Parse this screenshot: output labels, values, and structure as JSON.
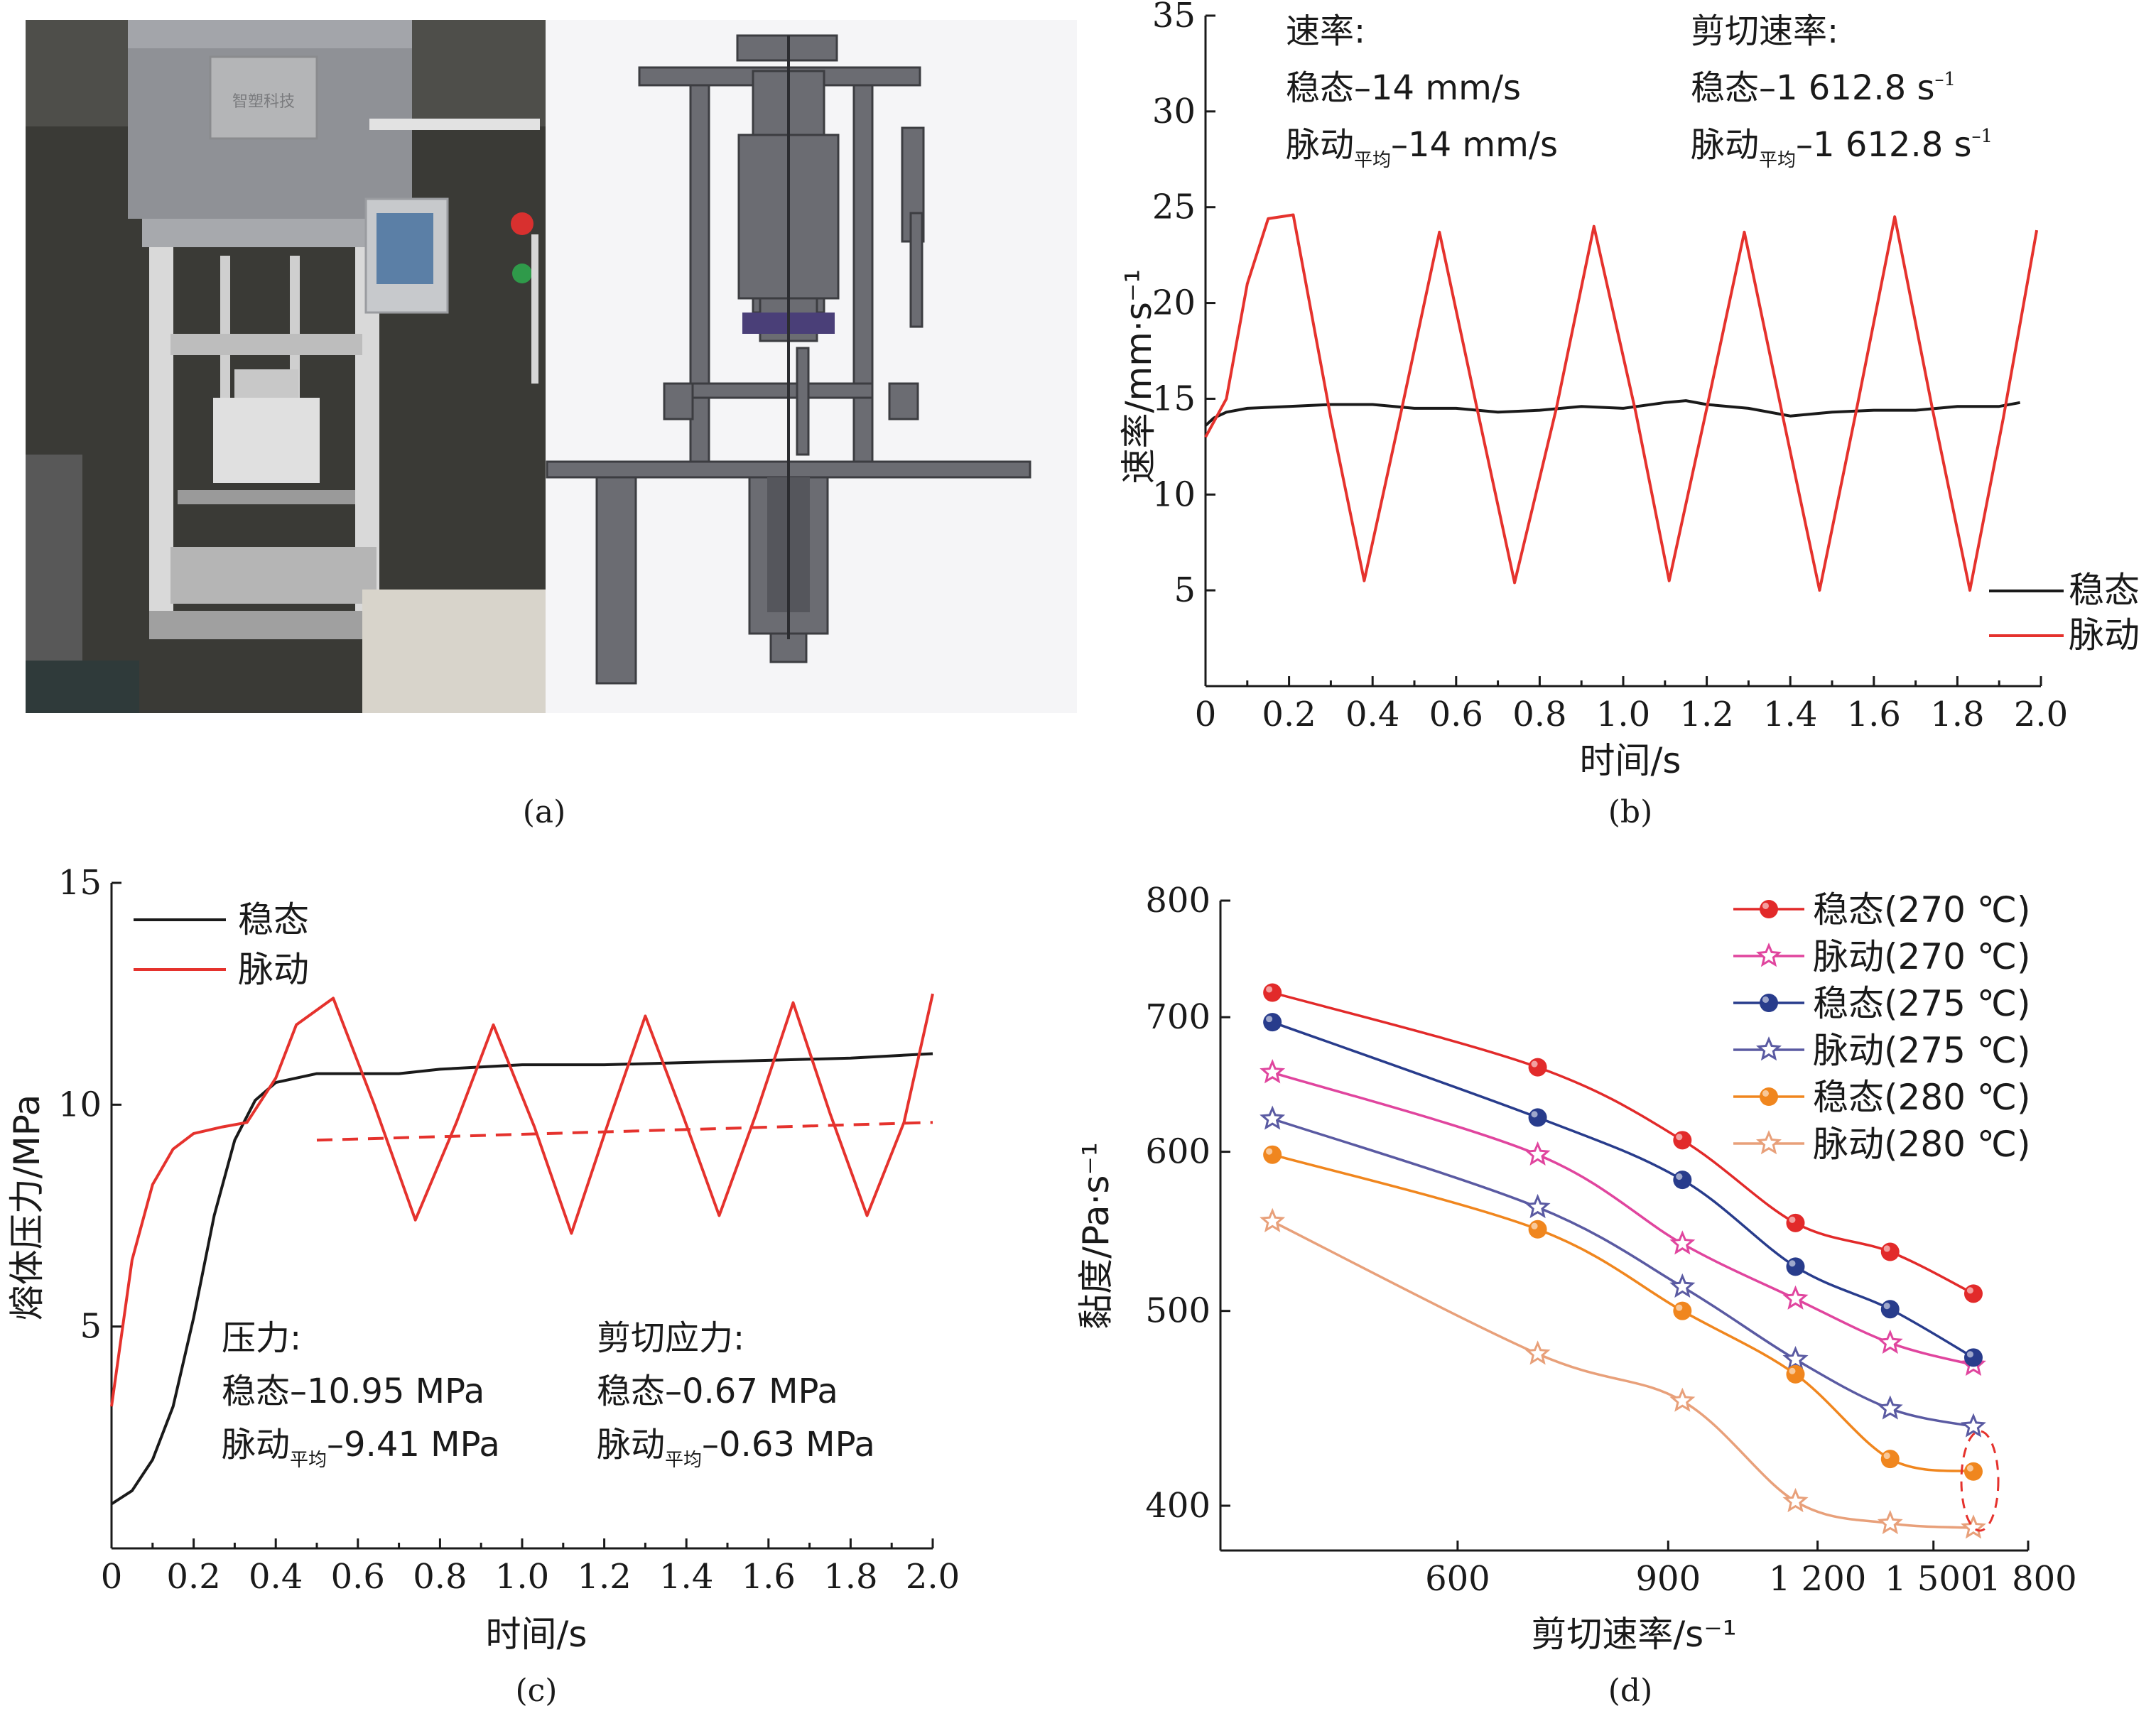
{
  "panel_labels": {
    "a": "(a)",
    "b": "(b)",
    "c": "(c)",
    "d": "(d)"
  },
  "photo": {
    "plate_text": "智塑科技"
  },
  "colors": {
    "steady": "#1a1a1a",
    "pulse": "#e5322d"
  },
  "chart_data": [
    {
      "id": "b",
      "type": "line",
      "xlabel": "时间/s",
      "ylabel": "速率/mm·s⁻¹",
      "xlim": [
        0,
        2.0
      ],
      "ylim": [
        0,
        35
      ],
      "xticks": [
        "0",
        "0.2",
        "0.4",
        "0.6",
        "0.8",
        "1.0",
        "1.2",
        "1.4",
        "1.6",
        "1.8",
        "2.0"
      ],
      "yticks": [
        "5",
        "10",
        "15",
        "20",
        "25",
        "30",
        "35"
      ],
      "legend_position": "bottom-right",
      "series": [
        {
          "name": "稳态",
          "color": "#1a1a1a",
          "x": [
            0,
            0.02,
            0.05,
            0.1,
            0.2,
            0.3,
            0.4,
            0.5,
            0.6,
            0.7,
            0.8,
            0.9,
            1.0,
            1.1,
            1.15,
            1.2,
            1.3,
            1.4,
            1.5,
            1.6,
            1.7,
            1.8,
            1.9,
            1.95
          ],
          "y": [
            13.6,
            14.0,
            14.3,
            14.5,
            14.6,
            14.7,
            14.7,
            14.5,
            14.5,
            14.3,
            14.4,
            14.6,
            14.5,
            14.8,
            14.9,
            14.7,
            14.5,
            14.1,
            14.3,
            14.4,
            14.4,
            14.6,
            14.6,
            14.8
          ]
        },
        {
          "name": "脉动",
          "color": "#e5322d",
          "x": [
            0,
            0.05,
            0.1,
            0.15,
            0.21,
            0.3,
            0.38,
            0.47,
            0.56,
            0.65,
            0.74,
            0.84,
            0.93,
            1.03,
            1.11,
            1.2,
            1.29,
            1.38,
            1.47,
            1.56,
            1.65,
            1.74,
            1.83,
            1.91,
            1.99
          ],
          "y": [
            13.0,
            15.0,
            21.0,
            24.4,
            24.6,
            14.0,
            5.5,
            14.5,
            23.7,
            14.5,
            5.4,
            14.5,
            24.0,
            14.3,
            5.5,
            14.5,
            23.7,
            14.3,
            5.0,
            14.6,
            24.5,
            14.5,
            5.0,
            14.0,
            23.8
          ]
        }
      ],
      "annotation": {
        "col1_title": "速率:",
        "col1_line1": "稳态–14 mm/s",
        "col1_line2_main": "脉动",
        "col1_line2_sub": "平均",
        "col1_line2_rest": "–14 mm/s",
        "col2_title": "剪切速率:",
        "col2_line1": "稳态–1 612.8 s",
        "col2_line1_sup": "–1",
        "col2_line2_main": "脉动",
        "col2_line2_sub": "平均",
        "col2_line2_rest": "–1 612.8 s",
        "col2_line2_sup": "–1"
      }
    },
    {
      "id": "c",
      "type": "line",
      "xlabel": "时间/s",
      "ylabel": "熔体压力/MPa",
      "xlim": [
        0,
        2.0
      ],
      "ylim": [
        0,
        15
      ],
      "xticks": [
        "0",
        "0.2",
        "0.4",
        "0.6",
        "0.8",
        "1.0",
        "1.2",
        "1.4",
        "1.6",
        "1.8",
        "2.0"
      ],
      "yticks": [
        "5",
        "10",
        "15"
      ],
      "legend_position": "top-left",
      "series": [
        {
          "name": "稳态",
          "color": "#1a1a1a",
          "x": [
            0,
            0.05,
            0.1,
            0.15,
            0.2,
            0.25,
            0.3,
            0.35,
            0.4,
            0.5,
            0.6,
            0.7,
            0.8,
            1.0,
            1.2,
            1.4,
            1.6,
            1.8,
            2.0
          ],
          "y": [
            1.0,
            1.3,
            2.0,
            3.2,
            5.2,
            7.5,
            9.2,
            10.1,
            10.5,
            10.7,
            10.7,
            10.7,
            10.8,
            10.9,
            10.9,
            10.95,
            11.0,
            11.05,
            11.15
          ]
        },
        {
          "name": "脉动",
          "color": "#e5322d",
          "x": [
            0,
            0.05,
            0.1,
            0.15,
            0.2,
            0.27,
            0.33,
            0.4,
            0.45,
            0.54,
            0.64,
            0.74,
            0.84,
            0.93,
            1.03,
            1.12,
            1.21,
            1.3,
            1.39,
            1.48,
            1.57,
            1.66,
            1.75,
            1.84,
            1.93,
            2.0
          ],
          "y": [
            3.2,
            6.5,
            8.2,
            9.0,
            9.35,
            9.5,
            9.6,
            10.6,
            11.8,
            12.4,
            10.0,
            7.4,
            9.6,
            11.8,
            9.5,
            7.1,
            9.6,
            12.0,
            9.8,
            7.5,
            9.8,
            12.3,
            9.8,
            7.5,
            9.6,
            12.5
          ]
        },
        {
          "name": "脉动平均",
          "color": "#e5322d",
          "dashed": true,
          "x": [
            0.5,
            2.0
          ],
          "y": [
            9.2,
            9.6
          ]
        }
      ],
      "annotation": {
        "col1_title": "压力:",
        "col1_line1": "稳态–10.95 MPa",
        "col1_line2_main": "脉动",
        "col1_line2_sub": "平均",
        "col1_line2_rest": "–9.41 MPa",
        "col2_title": "剪切应力:",
        "col2_line1": "稳态–0.67 MPa",
        "col2_line2_main": "脉动",
        "col2_line2_sub": "平均",
        "col2_line2_rest": "–0.63 MPa"
      }
    },
    {
      "id": "d",
      "type": "line",
      "xlabel": "剪切速率/s⁻¹",
      "ylabel": "黏度/Pa·s⁻¹",
      "x_scale": "log",
      "y_scale": "log",
      "xlim": [
        380,
        1800
      ],
      "ylim": [
        380,
        800
      ],
      "xticks": [
        "600",
        "900",
        "1 200",
        "1 500",
        "1 800"
      ],
      "xtick_values": [
        600,
        900,
        1200,
        1500,
        1800
      ],
      "yticks": [
        "400",
        "500",
        "600",
        "700",
        "800"
      ],
      "ytick_values": [
        400,
        500,
        600,
        700,
        800
      ],
      "legend_position": "top-right",
      "x": [
        420,
        700,
        925,
        1150,
        1380,
        1620
      ],
      "series": [
        {
          "name": "稳态(270 ℃)",
          "color": "#e22a2a",
          "marker": "circle",
          "y": [
            720,
            661,
            608,
            553,
            535,
            510
          ]
        },
        {
          "name": "脉动(270 ℃)",
          "color": "#e0459e",
          "marker": "star",
          "y": [
            657,
            598,
            540,
            507,
            482,
            470
          ]
        },
        {
          "name": "稳态(275 ℃)",
          "color": "#283c8c",
          "marker": "circle",
          "y": [
            696,
            624,
            581,
            526,
            501,
            474
          ]
        },
        {
          "name": "脉动(275 ℃)",
          "color": "#5a5aa2",
          "marker": "star",
          "y": [
            623,
            563,
            514,
            473,
            447,
            438
          ]
        },
        {
          "name": "稳态(280 ℃)",
          "color": "#f0861e",
          "marker": "circle",
          "y": [
            598,
            549,
            500,
            465,
            422,
            416
          ]
        },
        {
          "name": "脉动(280 ℃)",
          "color": "#e8a07a",
          "marker": "star",
          "y": [
            554,
            476,
            451,
            402,
            392,
            390
          ]
        }
      ]
    }
  ]
}
